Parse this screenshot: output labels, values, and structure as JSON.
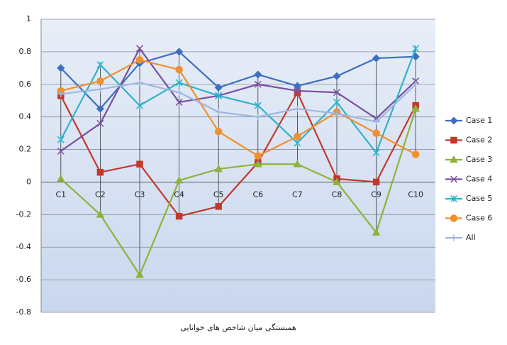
{
  "chart_data": {
    "type": "line",
    "x_label": "همبستگی میان شاخص های خوانایی",
    "categories": [
      "C1",
      "C2",
      "C3",
      "C4",
      "C5",
      "C6",
      "C7",
      "C8",
      "C9",
      "C10"
    ],
    "ylim": [
      -0.8,
      1
    ],
    "yticks": [
      -0.8,
      -0.6,
      -0.4,
      -0.2,
      0,
      0.2,
      0.4,
      0.6,
      0.8,
      1
    ],
    "grid": true,
    "legend": "right",
    "high_low_lines": true,
    "series": [
      {
        "name": "Case 1",
        "color": "#3d6fc0",
        "marker": "diamond",
        "values": [
          0.7,
          0.45,
          0.73,
          0.8,
          0.58,
          0.66,
          0.59,
          0.65,
          0.76,
          0.77
        ]
      },
      {
        "name": "Case 2",
        "color": "#c0392b",
        "marker": "square",
        "values": [
          0.53,
          0.06,
          0.11,
          -0.21,
          -0.15,
          0.12,
          0.55,
          0.02,
          0.0,
          0.47
        ]
      },
      {
        "name": "Case 3",
        "color": "#8db33a",
        "marker": "triangle",
        "values": [
          0.02,
          -0.2,
          -0.57,
          0.01,
          0.08,
          0.11,
          0.11,
          0.0,
          -0.31,
          0.45
        ]
      },
      {
        "name": "Case 4",
        "color": "#7a4fa0",
        "marker": "x",
        "values": [
          0.19,
          0.36,
          0.82,
          0.49,
          0.53,
          0.6,
          0.56,
          0.55,
          0.39,
          0.62
        ]
      },
      {
        "name": "Case 5",
        "color": "#2fb2c9",
        "marker": "star",
        "values": [
          0.26,
          0.72,
          0.47,
          0.61,
          0.53,
          0.47,
          0.24,
          0.49,
          0.18,
          0.82
        ]
      },
      {
        "name": "Case 6",
        "color": "#f0902e",
        "marker": "circle",
        "values": [
          0.56,
          0.62,
          0.75,
          0.69,
          0.31,
          0.16,
          0.28,
          0.43,
          0.3,
          0.17
        ]
      },
      {
        "name": "All",
        "color": "#9fb6e0",
        "marker": "plus",
        "values": [
          0.54,
          0.57,
          0.61,
          0.55,
          0.43,
          0.4,
          0.45,
          0.42,
          0.37,
          0.6
        ]
      }
    ]
  }
}
